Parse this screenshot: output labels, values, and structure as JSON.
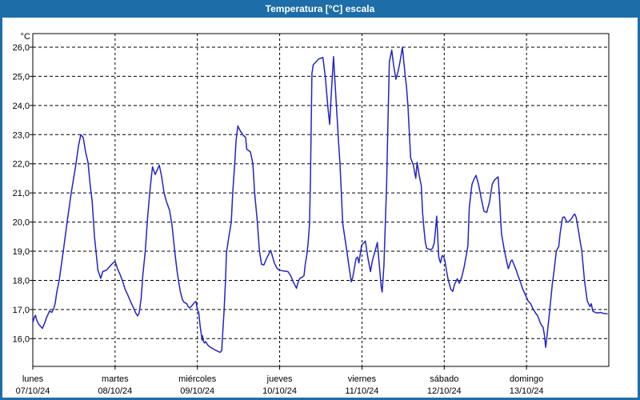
{
  "window": {
    "title": "Temperatura [°C] escala",
    "titlebar_color": "#1d6da8",
    "frame_color": "#1d6da8"
  },
  "chart_data": {
    "type": "line",
    "title": "Temperatura [°C] escala",
    "legend": "none",
    "grid": "dashed",
    "line_color": "#2323c8",
    "axis_color": "#000000",
    "background_color": "#ffffff",
    "y_axis": {
      "unit_label": "°C",
      "min": 16.0,
      "max": 26.0,
      "tick_step": 1.0,
      "tick_values": [
        26.0,
        25.0,
        24.0,
        23.0,
        22.0,
        21.0,
        20.0,
        19.0,
        18.0,
        17.0,
        16.0
      ],
      "tick_labels": [
        "26,0",
        "25,0",
        "24,0",
        "23,0",
        "22,0",
        "21,0",
        "20,0",
        "19,0",
        "18,0",
        "17,0",
        "16,0"
      ],
      "ylim": [
        15.0,
        26.5
      ]
    },
    "x_axis": {
      "hours_total": 168,
      "days": [
        {
          "name": "lunes",
          "date": "07/10/24"
        },
        {
          "name": "martes",
          "date": "08/10/24"
        },
        {
          "name": "miércoles",
          "date": "09/10/24"
        },
        {
          "name": "jueves",
          "date": "10/10/24"
        },
        {
          "name": "viernes",
          "date": "11/10/24"
        },
        {
          "name": "sábado",
          "date": "12/10/24"
        },
        {
          "name": "domingo",
          "date": "13/10/24"
        }
      ]
    },
    "series": [
      {
        "name": "Temperatura",
        "color": "#2323c8",
        "points": [
          [
            0,
            16.55
          ],
          [
            0.5,
            16.75
          ],
          [
            0.8,
            16.8
          ],
          [
            1.1,
            16.65
          ],
          [
            1.7,
            16.5
          ],
          [
            2.8,
            16.35
          ],
          [
            3.5,
            16.55
          ],
          [
            4,
            16.72
          ],
          [
            4.9,
            16.95
          ],
          [
            5.5,
            16.9
          ],
          [
            6.1,
            17.02
          ],
          [
            6.5,
            17.2
          ],
          [
            7,
            17.6
          ],
          [
            7.7,
            18.0
          ],
          [
            8.9,
            19.0
          ],
          [
            10,
            20.0
          ],
          [
            11.2,
            21.0
          ],
          [
            12.6,
            22.0
          ],
          [
            13.3,
            22.6
          ],
          [
            14,
            23.0
          ],
          [
            14.7,
            22.9
          ],
          [
            15.4,
            22.4
          ],
          [
            16.1,
            22.05
          ],
          [
            16.8,
            21.2
          ],
          [
            17.3,
            20.75
          ],
          [
            18,
            19.5
          ],
          [
            19,
            18.35
          ],
          [
            19.8,
            18.07
          ],
          [
            20.4,
            18.3
          ],
          [
            21.5,
            18.35
          ],
          [
            22.6,
            18.5
          ],
          [
            23.6,
            18.62
          ],
          [
            24,
            18.65
          ],
          [
            24.7,
            18.4
          ],
          [
            25.6,
            18.16
          ],
          [
            26.1,
            18.0
          ],
          [
            26.9,
            17.7
          ],
          [
            27.7,
            17.5
          ],
          [
            28.5,
            17.28
          ],
          [
            29.2,
            17.1
          ],
          [
            30,
            16.88
          ],
          [
            30.6,
            16.78
          ],
          [
            31,
            16.88
          ],
          [
            31.6,
            17.37
          ],
          [
            32.1,
            18.2
          ],
          [
            32.8,
            19.0
          ],
          [
            33.4,
            20.0
          ],
          [
            34.1,
            21.0
          ],
          [
            34.9,
            21.9
          ],
          [
            35.7,
            21.63
          ],
          [
            36.9,
            21.95
          ],
          [
            37.6,
            21.55
          ],
          [
            38.3,
            21.0
          ],
          [
            39,
            20.7
          ],
          [
            39.9,
            20.4
          ],
          [
            40.6,
            19.9
          ],
          [
            41.4,
            19.0
          ],
          [
            42.1,
            18.3
          ],
          [
            42.5,
            18.0
          ],
          [
            43,
            17.63
          ],
          [
            43.6,
            17.35
          ],
          [
            44.1,
            17.25
          ],
          [
            44.9,
            17.2
          ],
          [
            45.3,
            17.1
          ],
          [
            45.7,
            17.05
          ],
          [
            46.2,
            17.1
          ],
          [
            47.2,
            17.25
          ],
          [
            47.6,
            17.28
          ],
          [
            48,
            17.0
          ],
          [
            48.4,
            16.9
          ],
          [
            48.8,
            16.45
          ],
          [
            49.2,
            16.1
          ],
          [
            49.4,
            15.95
          ],
          [
            49.5,
            16.1
          ],
          [
            49.8,
            15.9
          ],
          [
            50.1,
            15.85
          ],
          [
            50.4,
            15.9
          ],
          [
            51.1,
            15.77
          ],
          [
            51.6,
            15.72
          ],
          [
            52.3,
            15.67
          ],
          [
            53,
            15.62
          ],
          [
            53.7,
            15.58
          ],
          [
            54.6,
            15.53
          ],
          [
            55.1,
            15.58
          ],
          [
            55.4,
            16.2
          ],
          [
            55.8,
            16.95
          ],
          [
            56.2,
            18.0
          ],
          [
            56.5,
            18.95
          ],
          [
            57.2,
            19.5
          ],
          [
            57.9,
            20.0
          ],
          [
            58.3,
            21.0
          ],
          [
            58.9,
            22.0
          ],
          [
            59.3,
            22.8
          ],
          [
            59.8,
            23.3
          ],
          [
            60.4,
            23.15
          ],
          [
            61.2,
            23.0
          ],
          [
            62.1,
            22.9
          ],
          [
            62.4,
            22.5
          ],
          [
            63,
            22.45
          ],
          [
            63.5,
            22.4
          ],
          [
            64.2,
            22.0
          ],
          [
            64.7,
            21.0
          ],
          [
            65.5,
            20.0
          ],
          [
            66.1,
            19.0
          ],
          [
            66.7,
            18.55
          ],
          [
            67.4,
            18.53
          ],
          [
            68.2,
            18.76
          ],
          [
            69.4,
            19.03
          ],
          [
            70.5,
            18.58
          ],
          [
            71.3,
            18.4
          ],
          [
            72,
            18.35
          ],
          [
            73.2,
            18.32
          ],
          [
            74.4,
            18.3
          ],
          [
            75.2,
            18.16
          ],
          [
            76,
            17.94
          ],
          [
            76.9,
            17.73
          ],
          [
            77.5,
            17.98
          ],
          [
            77.9,
            18.07
          ],
          [
            78.7,
            18.12
          ],
          [
            79.1,
            18.16
          ],
          [
            79.5,
            18.58
          ],
          [
            79.9,
            18.85
          ],
          [
            80.3,
            19.26
          ],
          [
            80.7,
            19.95
          ],
          [
            81,
            21.5
          ],
          [
            81.4,
            25.1
          ],
          [
            81.8,
            25.4
          ],
          [
            82.6,
            25.5
          ],
          [
            83.4,
            25.6
          ],
          [
            84.2,
            25.63
          ],
          [
            84.6,
            25.65
          ],
          [
            85.3,
            25.0
          ],
          [
            86.1,
            23.9
          ],
          [
            86.6,
            23.35
          ],
          [
            87.1,
            24.5
          ],
          [
            87.7,
            25.68
          ],
          [
            88,
            25.1
          ],
          [
            88.8,
            23.5
          ],
          [
            89.2,
            22.7
          ],
          [
            89.6,
            22.0
          ],
          [
            90,
            21.0
          ],
          [
            90.4,
            19.95
          ],
          [
            91.6,
            19.0
          ],
          [
            92.2,
            18.5
          ],
          [
            92.9,
            17.95
          ],
          [
            93.3,
            18.1
          ],
          [
            94.3,
            18.75
          ],
          [
            94.7,
            18.8
          ],
          [
            95.1,
            18.6
          ],
          [
            95.9,
            19.2
          ],
          [
            97,
            19.35
          ],
          [
            97.7,
            18.8
          ],
          [
            98.5,
            18.3
          ],
          [
            99.1,
            18.7
          ],
          [
            99.7,
            18.95
          ],
          [
            100.5,
            19.3
          ],
          [
            101,
            18.6
          ],
          [
            101.6,
            17.8
          ],
          [
            101.9,
            17.6
          ],
          [
            102.4,
            18.5
          ],
          [
            102.8,
            19.9
          ],
          [
            103.2,
            21.3
          ],
          [
            103.6,
            23.5
          ],
          [
            104,
            25.5
          ],
          [
            104.7,
            25.9
          ],
          [
            105.2,
            25.4
          ],
          [
            105.9,
            24.9
          ],
          [
            106.6,
            25.2
          ],
          [
            107.1,
            25.5
          ],
          [
            107.8,
            26.0
          ],
          [
            108.6,
            25.05
          ],
          [
            109,
            24.65
          ],
          [
            109.4,
            24.0
          ],
          [
            109.8,
            23.1
          ],
          [
            110.2,
            22.2
          ],
          [
            111,
            21.95
          ],
          [
            111.7,
            21.5
          ],
          [
            112.1,
            22.05
          ],
          [
            112.7,
            21.6
          ],
          [
            113.3,
            21.25
          ],
          [
            113.7,
            20.3
          ],
          [
            114.1,
            19.75
          ],
          [
            114.5,
            19.3
          ],
          [
            114.9,
            19.1
          ],
          [
            116,
            19.05
          ],
          [
            116.6,
            19.1
          ],
          [
            117.1,
            19.3
          ],
          [
            117.8,
            20.2
          ],
          [
            118.4,
            18.8
          ],
          [
            118.9,
            18.6
          ],
          [
            119.4,
            18.85
          ],
          [
            119.9,
            18.8
          ],
          [
            120.3,
            18.6
          ],
          [
            120.7,
            18.3
          ],
          [
            121.1,
            18.05
          ],
          [
            121.9,
            17.7
          ],
          [
            122.5,
            17.62
          ],
          [
            123,
            17.85
          ],
          [
            123.8,
            18.05
          ],
          [
            124.4,
            17.9
          ],
          [
            125.1,
            18.1
          ],
          [
            125.8,
            18.45
          ],
          [
            126.5,
            18.9
          ],
          [
            126.9,
            19.2
          ],
          [
            127.3,
            20.5
          ],
          [
            128.1,
            21.3
          ],
          [
            128.8,
            21.5
          ],
          [
            129.3,
            21.6
          ],
          [
            130,
            21.3
          ],
          [
            130.4,
            21.05
          ],
          [
            130.8,
            20.8
          ],
          [
            131.6,
            20.37
          ],
          [
            132.4,
            20.33
          ],
          [
            133.2,
            20.7
          ],
          [
            134,
            21.3
          ],
          [
            134.7,
            21.45
          ],
          [
            135.7,
            21.55
          ],
          [
            136.1,
            20.9
          ],
          [
            136.4,
            20.2
          ],
          [
            136.7,
            19.6
          ],
          [
            137.5,
            19.05
          ],
          [
            138.3,
            18.6
          ],
          [
            138.7,
            18.4
          ],
          [
            139.4,
            18.65
          ],
          [
            139.8,
            18.7
          ],
          [
            141,
            18.35
          ],
          [
            141.4,
            18.2
          ],
          [
            142.2,
            17.95
          ],
          [
            142.9,
            17.7
          ],
          [
            143.3,
            17.6
          ],
          [
            144,
            17.42
          ],
          [
            144.4,
            17.3
          ],
          [
            145.2,
            17.2
          ],
          [
            146,
            17.0
          ],
          [
            146.8,
            16.85
          ],
          [
            147.2,
            16.8
          ],
          [
            148,
            16.55
          ],
          [
            148.4,
            16.45
          ],
          [
            148.8,
            16.4
          ],
          [
            149.2,
            16.15
          ],
          [
            149.6,
            15.7
          ],
          [
            149.9,
            16.0
          ],
          [
            150.7,
            16.9
          ],
          [
            151.5,
            17.85
          ],
          [
            151.9,
            18.2
          ],
          [
            152.7,
            19.0
          ],
          [
            153.1,
            19.1
          ],
          [
            153.4,
            19.15
          ],
          [
            153.8,
            19.6
          ],
          [
            154.5,
            20.15
          ],
          [
            155,
            20.18
          ],
          [
            155.8,
            20.0
          ],
          [
            156.2,
            20.0
          ],
          [
            157,
            20.1
          ],
          [
            157.8,
            20.25
          ],
          [
            158.1,
            20.27
          ],
          [
            158.5,
            20.15
          ],
          [
            159.3,
            19.6
          ],
          [
            159.7,
            19.3
          ],
          [
            160.1,
            19.05
          ],
          [
            160.9,
            18.0
          ],
          [
            161.3,
            17.65
          ],
          [
            161.7,
            17.3
          ],
          [
            162.1,
            17.2
          ],
          [
            162.5,
            17.1
          ],
          [
            162.9,
            17.2
          ],
          [
            163.3,
            16.95
          ],
          [
            164,
            16.9
          ],
          [
            164.7,
            16.88
          ],
          [
            165.6,
            16.9
          ],
          [
            166.3,
            16.87
          ],
          [
            167.5,
            16.85
          ]
        ]
      }
    ]
  }
}
